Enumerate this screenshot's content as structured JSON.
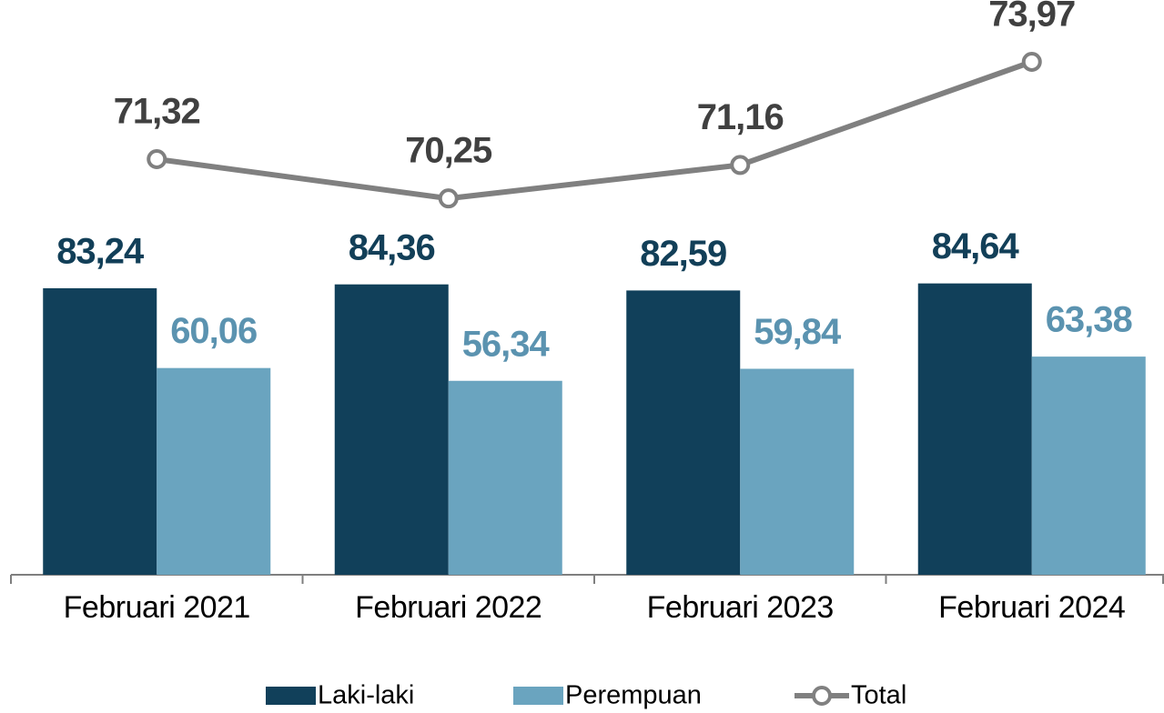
{
  "chart_data": {
    "type": "bar",
    "categories": [
      "Februari 2021",
      "Februari 2022",
      "Februari 2023",
      "Februari 2024"
    ],
    "ylim": [
      0,
      160
    ],
    "y2lim": [
      60,
      75
    ],
    "series": [
      {
        "name": "Laki-laki",
        "type": "bar",
        "color": "#11405a",
        "label_color": "#123f58",
        "values": [
          83.24,
          84.36,
          82.59,
          84.64
        ],
        "value_labels": [
          "83,24",
          "84,36",
          "82,59",
          "84,64"
        ]
      },
      {
        "name": "Perempuan",
        "type": "bar",
        "color": "#6aa4bf",
        "label_color": "#5b93b0",
        "values": [
          60.06,
          56.34,
          59.84,
          63.38
        ],
        "value_labels": [
          "60,06",
          "56,34",
          "59,84",
          "63,38"
        ]
      },
      {
        "name": "Total",
        "type": "line",
        "axis": "y2",
        "color": "#808080",
        "label_color": "#404040",
        "values": [
          71.32,
          70.25,
          71.16,
          73.97
        ],
        "value_labels": [
          "71,32",
          "70,25",
          "71,16",
          "73,97"
        ]
      }
    ],
    "legend": "bottom"
  }
}
